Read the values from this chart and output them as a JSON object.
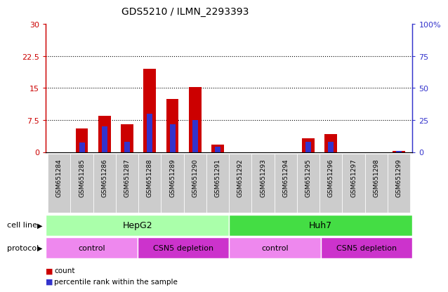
{
  "title": "GDS5210 / ILMN_2293393",
  "samples": [
    "GSM651284",
    "GSM651285",
    "GSM651286",
    "GSM651287",
    "GSM651288",
    "GSM651289",
    "GSM651290",
    "GSM651291",
    "GSM651292",
    "GSM651293",
    "GSM651294",
    "GSM651295",
    "GSM651296",
    "GSM651297",
    "GSM651298",
    "GSM651299"
  ],
  "count_values": [
    0.0,
    5.5,
    8.5,
    6.5,
    19.5,
    12.5,
    15.2,
    1.8,
    0.0,
    0.0,
    0.0,
    3.2,
    4.2,
    0.0,
    0.0,
    0.35
  ],
  "percentile_values": [
    0,
    7.5,
    20,
    8,
    30,
    22,
    25,
    4,
    0,
    0,
    0,
    8,
    8,
    0,
    0,
    1
  ],
  "ylim_left": [
    0,
    30
  ],
  "ylim_right": [
    0,
    100
  ],
  "yticks_left": [
    0,
    7.5,
    15,
    22.5,
    30
  ],
  "ytick_labels_left": [
    "0",
    "7.5",
    "15",
    "22.5",
    "30"
  ],
  "yticks_right": [
    0,
    25,
    50,
    75,
    100
  ],
  "ytick_labels_right": [
    "0",
    "25",
    "50",
    "75",
    "100%"
  ],
  "bar_color": "#cc0000",
  "percentile_color": "#3333cc",
  "bar_width": 0.55,
  "cell_line_hepg2_color": "#aaffaa",
  "cell_line_huh7_color": "#44dd44",
  "protocol_color_control": "#ee88ee",
  "protocol_color_csn5": "#cc33cc",
  "xtick_bg_color": "#cccccc",
  "plot_bg_color": "#ffffff",
  "left_axis_color": "#cc0000",
  "right_axis_color": "#3333cc",
  "fig_bg_color": "#ffffff"
}
